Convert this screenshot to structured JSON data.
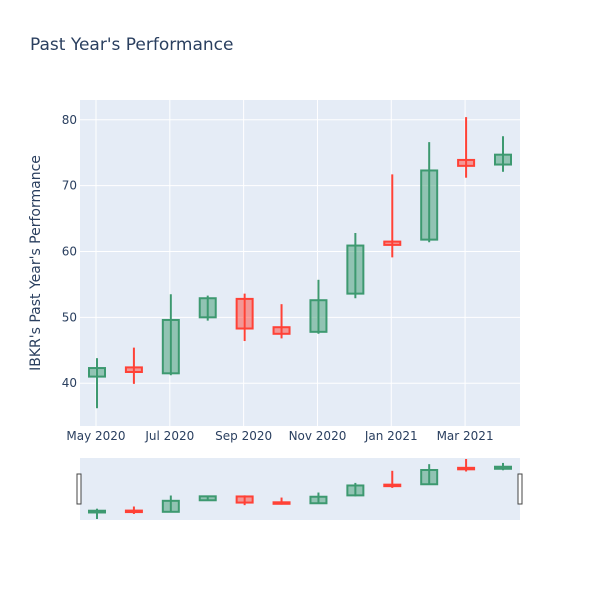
{
  "chart_data": {
    "type": "candlestick",
    "title": "Past Year's Performance",
    "xlabel": "",
    "ylabel": "IBKR's Past Year's Performance",
    "ylim": [
      33.5,
      83
    ],
    "x_tick_labels": [
      "May 2020",
      "Jul 2020",
      "Sep 2020",
      "Nov 2020",
      "Jan 2021",
      "Mar 2021"
    ],
    "y_ticks": [
      40,
      50,
      60,
      70,
      80
    ],
    "grid": true,
    "increasing_color": "#3d9970",
    "decreasing_color": "#ff4136",
    "rangeslider": true,
    "candles": [
      {
        "open": 41.0,
        "high": 43.8,
        "low": 36.2,
        "close": 42.3
      },
      {
        "open": 42.4,
        "high": 45.4,
        "low": 39.9,
        "close": 41.7
      },
      {
        "open": 41.5,
        "high": 53.5,
        "low": 41.2,
        "close": 49.6
      },
      {
        "open": 50.0,
        "high": 53.3,
        "low": 49.5,
        "close": 52.9
      },
      {
        "open": 52.8,
        "high": 53.6,
        "low": 46.4,
        "close": 48.3
      },
      {
        "open": 48.5,
        "high": 52.0,
        "low": 46.8,
        "close": 47.5
      },
      {
        "open": 47.8,
        "high": 55.7,
        "low": 47.5,
        "close": 52.6
      },
      {
        "open": 53.6,
        "high": 62.8,
        "low": 52.9,
        "close": 60.9
      },
      {
        "open": 61.5,
        "high": 71.7,
        "low": 59.1,
        "close": 61.0
      },
      {
        "open": 61.8,
        "high": 76.6,
        "low": 61.4,
        "close": 72.3
      },
      {
        "open": 73.9,
        "high": 80.4,
        "low": 71.2,
        "close": 73.0
      },
      {
        "open": 73.2,
        "high": 77.5,
        "low": 72.1,
        "close": 74.7
      }
    ]
  }
}
